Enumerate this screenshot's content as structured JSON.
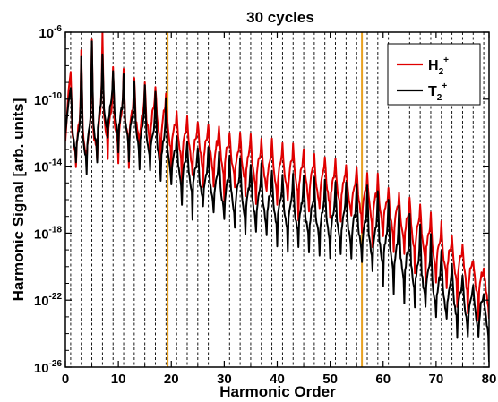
{
  "chart_data": {
    "type": "line",
    "title": "30 cycles",
    "xlabel": "Harmonic Order",
    "ylabel": "Harmonic Signal [arb. units]",
    "xlim": [
      0,
      80
    ],
    "ylim_exponent": [
      -26,
      -6
    ],
    "y_scale": "log",
    "x_ticks": [
      "0",
      "10",
      "20",
      "30",
      "40",
      "50",
      "60",
      "70",
      "80"
    ],
    "y_tick_base": "10",
    "y_tick_exponents": [
      "-6",
      "-10",
      "-14",
      "-18",
      "-22",
      "-26"
    ],
    "odd_harmonic_gridlines": true,
    "legend_position": "top-right",
    "markers": [
      {
        "x": 19.3,
        "color": "#e8a020"
      },
      {
        "x": 56.0,
        "color": "#e8a020"
      }
    ],
    "series": [
      {
        "name": "H",
        "sub": "2",
        "sup": "+",
        "color": "#e00000",
        "peaks_x": [
          1,
          3,
          5,
          7,
          9,
          11,
          13,
          15,
          17,
          19,
          21,
          23,
          25,
          27,
          29,
          31,
          33,
          35,
          37,
          39,
          41,
          43,
          45,
          47,
          49,
          51,
          53,
          55,
          57,
          59,
          61,
          63,
          65,
          67,
          69,
          71,
          73,
          75,
          77,
          79
        ],
        "peaks_log10": [
          -8.5,
          -7.0,
          -6.3,
          -6.0,
          -8.0,
          -8.3,
          -8.6,
          -8.9,
          -9.2,
          -9.6,
          -10.7,
          -11.1,
          -11.3,
          -11.4,
          -11.6,
          -11.9,
          -12.0,
          -12.1,
          -12.3,
          -12.5,
          -12.6,
          -12.8,
          -13.0,
          -13.2,
          -13.4,
          -13.6,
          -13.9,
          -14.1,
          -14.4,
          -14.6,
          -15.2,
          -15.5,
          -15.8,
          -16.2,
          -16.7,
          -17.3,
          -18.0,
          -18.8,
          -19.5,
          -20.2
        ],
        "troughs_log10": [
          -13.5,
          -13.5,
          -13.8,
          -12.5,
          -13.0,
          -12.8,
          -12.8,
          -12.7,
          -12.6,
          -12.9,
          -13.9,
          -14.1,
          -14.3,
          -14.5,
          -14.7,
          -14.9,
          -15.1,
          -15.3,
          -15.5,
          -15.6,
          -15.8,
          -15.9,
          -16.1,
          -16.3,
          -16.5,
          -16.7,
          -16.9,
          -17.2,
          -17.5,
          -17.8,
          -18.3,
          -18.7,
          -19.1,
          -19.6,
          -20.1,
          -20.6,
          -21.1,
          -21.6,
          -22.1,
          -22.5
        ]
      },
      {
        "name": "T",
        "sub": "2",
        "sup": "+",
        "color": "#000000",
        "peaks_x": [
          1,
          3,
          5,
          7,
          9,
          11,
          13,
          15,
          17,
          19,
          21,
          23,
          25,
          27,
          29,
          31,
          33,
          35,
          37,
          39,
          41,
          43,
          45,
          47,
          49,
          51,
          53,
          55,
          57,
          59,
          61,
          63,
          65,
          67,
          69,
          71,
          73,
          75,
          77,
          79
        ],
        "peaks_log10": [
          -9.2,
          -7.5,
          -6.5,
          -7.2,
          -8.2,
          -8.5,
          -8.8,
          -9.1,
          -9.4,
          -9.9,
          -12.2,
          -12.5,
          -12.8,
          -13.0,
          -13.2,
          -13.4,
          -13.6,
          -13.8,
          -14.0,
          -14.2,
          -14.4,
          -14.5,
          -14.7,
          -14.8,
          -14.9,
          -15.0,
          -15.0,
          -15.1,
          -15.3,
          -15.5,
          -16.0,
          -16.5,
          -17.0,
          -17.5,
          -18.2,
          -18.9,
          -19.7,
          -20.4,
          -21.0,
          -21.6
        ],
        "troughs_log10": [
          -13.0,
          -14.0,
          -13.5,
          -12.2,
          -12.2,
          -12.8,
          -13.2,
          -13.6,
          -14.0,
          -14.5,
          -15.3,
          -15.8,
          -16.2,
          -16.5,
          -16.8,
          -17.0,
          -17.2,
          -17.4,
          -17.6,
          -17.8,
          -18.0,
          -18.2,
          -18.4,
          -18.5,
          -18.7,
          -18.8,
          -18.9,
          -19.1,
          -19.5,
          -19.9,
          -20.4,
          -20.9,
          -21.4,
          -21.9,
          -22.4,
          -22.9,
          -23.3,
          -23.6,
          -23.9,
          -24.2
        ]
      }
    ]
  }
}
